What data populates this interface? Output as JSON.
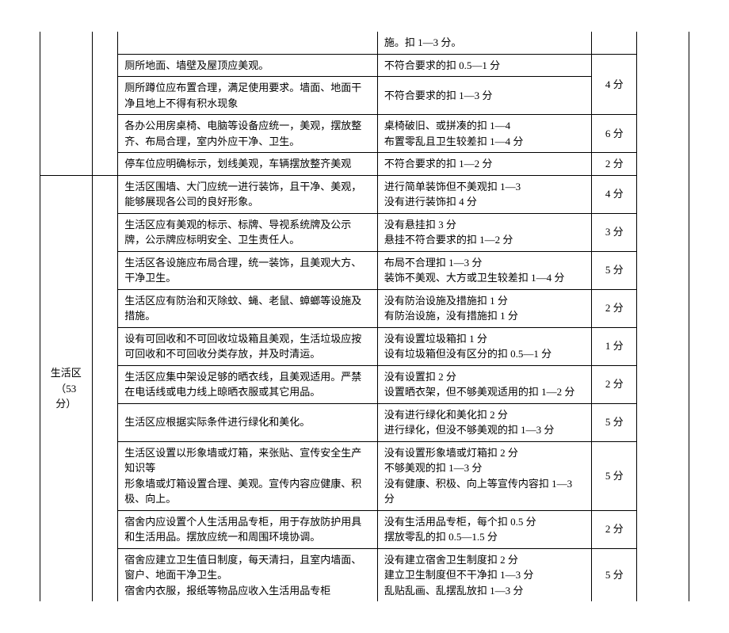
{
  "category1": {
    "label": ""
  },
  "category2": {
    "label": "生活区\n（53 分）"
  },
  "rows": [
    {
      "requirement": "",
      "deduction": "施。扣 1—3 分。",
      "score": ""
    },
    {
      "requirement": "厕所地面、墙壁及屋顶应美观。",
      "deduction": "不符合要求的扣 0.5—1 分",
      "score": "4 分",
      "scoreRowspan": 2
    },
    {
      "requirement": "厕所蹲位应布置合理，满足使用要求。墙面、地面干净且地上不得有积水现象",
      "deduction": "不符合要求的扣 1—3 分"
    },
    {
      "requirement": "各办公用房桌椅、电脑等设备应统一，美观，摆放整齐、布局合理，室内外应干净、卫生。",
      "deduction": "桌椅破旧、或拼凑的扣 1—4\n布置零乱且卫生较差扣 1—4 分",
      "score": "6 分"
    },
    {
      "requirement": "停车位应明确标示，划线美观，车辆摆放整齐美观",
      "deduction": "不符合要求的扣 1—2 分",
      "score": "2 分"
    },
    {
      "requirement": "生活区围墙、大门应统一进行装饰，且干净、美观，能够展现各公司的良好形象。",
      "deduction": "进行简单装饰但不美观扣 1—3\n没有进行装饰扣 4 分",
      "score": "4 分"
    },
    {
      "requirement": "生活区应有美观的标示、标牌、导视系统牌及公示牌，公示牌应标明安全、卫生责任人。",
      "deduction": "没有悬挂扣 3 分\n悬挂不符合要求的扣 1—2 分",
      "score": "3 分"
    },
    {
      "requirement": "生活区各设施应布局合理，统一装饰，且美观大方、干净卫生。",
      "deduction": "布局不合理扣 1—3 分\n装饰不美观、大方或卫生较差扣 1—4 分",
      "score": "5 分"
    },
    {
      "requirement": "生活区应有防治和灭除蚊、蝇、老鼠、蟑螂等设施及措施。",
      "deduction": "没有防治设施及措施扣 1 分\n有防治设施，没有措施扣 1 分",
      "score": "2 分"
    },
    {
      "requirement": "设有可回收和不可回收垃圾箱且美观，生活垃圾应按可回收和不可回收分类存放，并及时清运。",
      "deduction": "没有设置垃圾箱扣 1 分\n设有垃圾箱但没有区分的扣 0.5—1 分",
      "score": "1 分"
    },
    {
      "requirement": "生活区应集中架设足够的晒衣线，且美观适用。严禁在电话线或电力线上晾晒衣服或其它用品。",
      "deduction": "没有设置扣 2 分\n设置晒衣架，但不够美观适用的扣 1—2 分",
      "score": "2 分"
    },
    {
      "requirement": "生活区应根据实际条件进行绿化和美化。",
      "deduction": "没有进行绿化和美化扣 2 分\n进行绿化，但没不够美观的扣 1—3 分",
      "score": "5 分"
    },
    {
      "requirement": "生活区设置以形象墙或灯箱，来张贴、宣传安全生产知识等\n形象墙或灯箱设置合理、美观。宣传内容应健康、积极、向上。",
      "deduction": "没有设置形象墙或灯箱扣 2 分\n不够美观的扣 1—3 分\n没有健康、积极、向上等宣传内容扣 1—3 分",
      "score": "5 分"
    },
    {
      "requirement": "宿舍内应设置个人生活用品专柜，用于存放防护用具和生活用品。摆放应统一和周围环境协调。",
      "deduction": "没有生活用品专柜，每个扣 0.5 分\n摆放零乱的扣 0.5—1.5 分",
      "score": "2 分"
    },
    {
      "requirement": "宿舍应建立卫生值日制度，每天清扫，且室内墙面、窗户、地面干净卫生。\n宿舍内衣服，报纸等物品应收入生活用品专柜",
      "deduction": "没有建立宿舍卫生制度扣 2 分\n建立卫生制度但不干净扣 1—3 分\n乱贴乱画、乱摆乱放扣 1—3 分",
      "score": "5 分"
    }
  ]
}
